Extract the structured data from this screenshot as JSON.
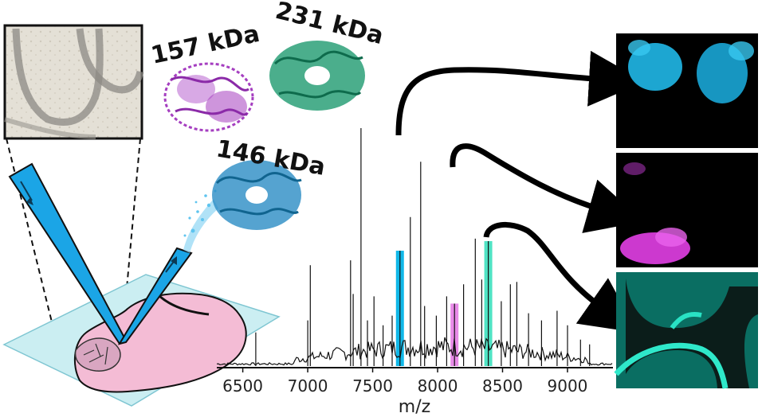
{
  "proteins": [
    {
      "label": "157 kDa",
      "color": "#a53ec0"
    },
    {
      "label": "231 kDa",
      "color": "#1e9a6f"
    },
    {
      "label": "146 kDa",
      "color": "#2b8cc4"
    }
  ],
  "colors": {
    "probe": "#1aa3e6",
    "tissue": "#f3b8d2",
    "slide": "#c8ecf1",
    "arrow": "#000000"
  },
  "chart_data": {
    "type": "line",
    "xlabel": "m/z",
    "x_ticks": [
      6500,
      7000,
      7500,
      8000,
      8500,
      9000
    ],
    "xlim": [
      6300,
      9350
    ],
    "grid": false,
    "highlights": [
      {
        "mz": 7710,
        "color": "#10b8e8"
      },
      {
        "mz": 8130,
        "color": "#e88ae8"
      },
      {
        "mz": 8390,
        "color": "#4fe3c4"
      }
    ],
    "peaks": [
      {
        "mz": 6600,
        "h": 0.14
      },
      {
        "mz": 7000,
        "h": 0.19
      },
      {
        "mz": 7020,
        "h": 0.42
      },
      {
        "mz": 7330,
        "h": 0.44
      },
      {
        "mz": 7350,
        "h": 0.3
      },
      {
        "mz": 7410,
        "h": 0.99
      },
      {
        "mz": 7460,
        "h": 0.19
      },
      {
        "mz": 7510,
        "h": 0.29
      },
      {
        "mz": 7580,
        "h": 0.17
      },
      {
        "mz": 7650,
        "h": 0.21
      },
      {
        "mz": 7710,
        "h": 0.48
      },
      {
        "mz": 7790,
        "h": 0.62
      },
      {
        "mz": 7870,
        "h": 0.85
      },
      {
        "mz": 7900,
        "h": 0.25
      },
      {
        "mz": 7990,
        "h": 0.21
      },
      {
        "mz": 8070,
        "h": 0.29
      },
      {
        "mz": 8130,
        "h": 0.26
      },
      {
        "mz": 8200,
        "h": 0.34
      },
      {
        "mz": 8290,
        "h": 0.53
      },
      {
        "mz": 8340,
        "h": 0.36
      },
      {
        "mz": 8390,
        "h": 0.52
      },
      {
        "mz": 8490,
        "h": 0.27
      },
      {
        "mz": 8560,
        "h": 0.34
      },
      {
        "mz": 8610,
        "h": 0.35
      },
      {
        "mz": 8700,
        "h": 0.22
      },
      {
        "mz": 8800,
        "h": 0.19
      },
      {
        "mz": 8920,
        "h": 0.23
      },
      {
        "mz": 9000,
        "h": 0.17
      },
      {
        "mz": 9100,
        "h": 0.11
      },
      {
        "mz": 9170,
        "h": 0.09
      }
    ]
  }
}
